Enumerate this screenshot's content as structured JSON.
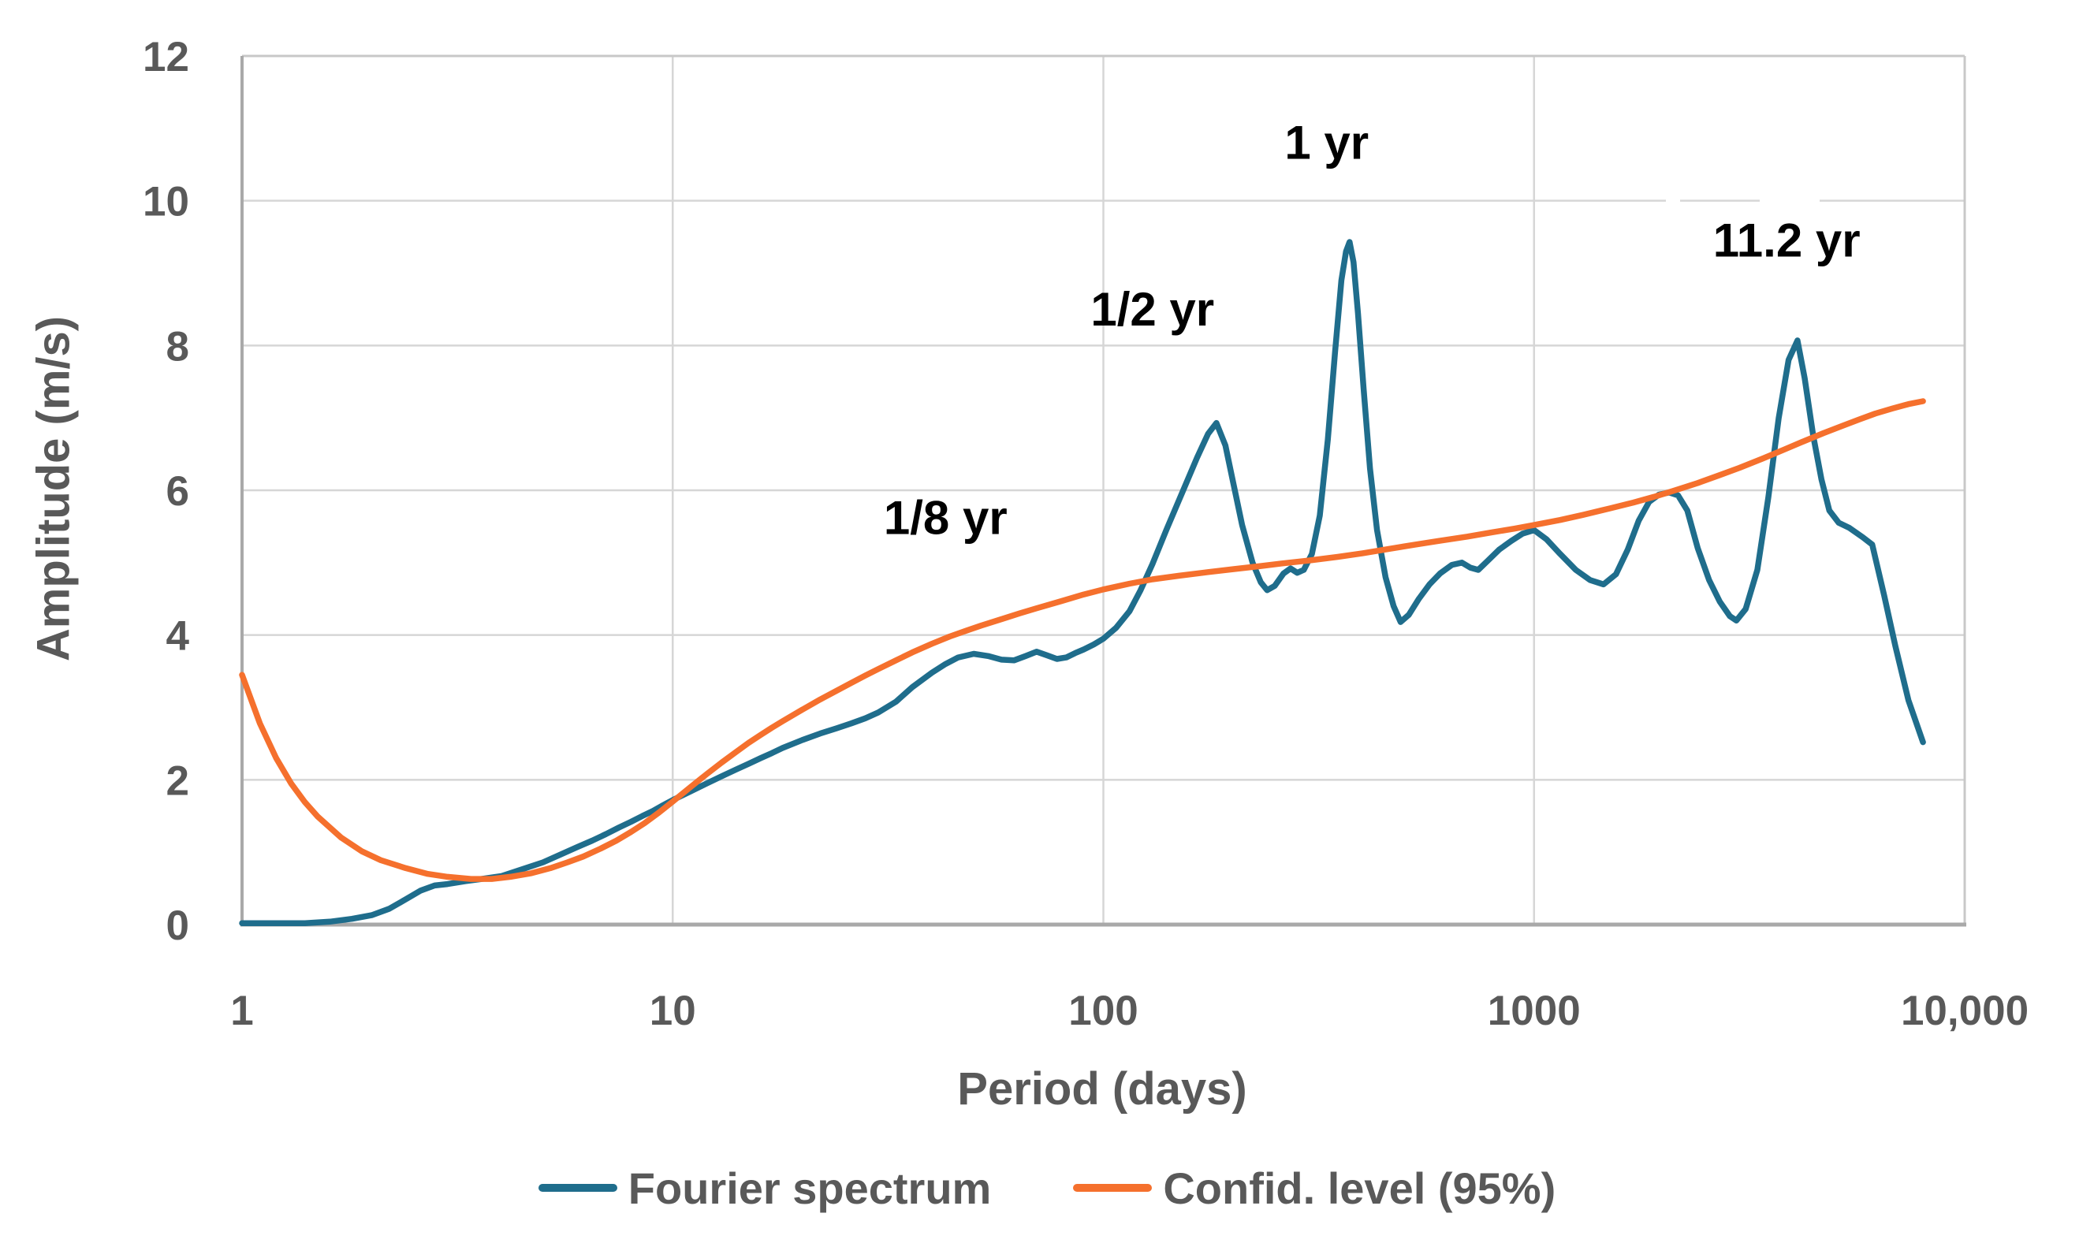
{
  "chart_data": {
    "type": "line",
    "title": "",
    "xlabel": "Period (days)",
    "ylabel": "Amplitude (m/s)",
    "x_scale": "log",
    "xlim": [
      1,
      10000
    ],
    "ylim": [
      0,
      12
    ],
    "grid": true,
    "legend_position": "bottom",
    "x_ticks": [
      {
        "label": "1",
        "value": 1
      },
      {
        "label": "10",
        "value": 10
      },
      {
        "label": "100",
        "value": 100
      },
      {
        "label": "1000",
        "value": 1000
      },
      {
        "label": "10,000",
        "value": 10000
      }
    ],
    "y_ticks": [
      {
        "label": "0",
        "value": 0
      },
      {
        "label": "2",
        "value": 2
      },
      {
        "label": "4",
        "value": 4
      },
      {
        "label": "6",
        "value": 6
      },
      {
        "label": "8",
        "value": 8
      },
      {
        "label": "10",
        "value": 10
      },
      {
        "label": "12",
        "value": 12
      }
    ],
    "annotations": [
      {
        "label": "1/8 yr",
        "period": 43,
        "amplitude": 5.62
      },
      {
        "label": "1/2 yr",
        "period": 130,
        "amplitude": 8.5
      },
      {
        "label": "1 yr",
        "period": 330,
        "amplitude": 10.8
      },
      {
        "label": "11.2 yr",
        "period": 3860,
        "amplitude": 9.45
      }
    ],
    "series": [
      {
        "name": "Fourier spectrum",
        "color": "#1F6D8C",
        "points": [
          [
            1,
            0.02
          ],
          [
            1.2,
            0.02
          ],
          [
            1.4,
            0.02
          ],
          [
            1.6,
            0.04
          ],
          [
            1.8,
            0.08
          ],
          [
            2,
            0.13
          ],
          [
            2.2,
            0.22
          ],
          [
            2.4,
            0.35
          ],
          [
            2.6,
            0.47
          ],
          [
            2.8,
            0.54
          ],
          [
            3,
            0.56
          ],
          [
            3.3,
            0.6
          ],
          [
            3.6,
            0.63
          ],
          [
            4,
            0.67
          ],
          [
            4.5,
            0.77
          ],
          [
            5,
            0.86
          ],
          [
            5.5,
            0.97
          ],
          [
            6,
            1.07
          ],
          [
            6.5,
            1.16
          ],
          [
            7,
            1.25
          ],
          [
            7.5,
            1.34
          ],
          [
            8,
            1.42
          ],
          [
            8.5,
            1.5
          ],
          [
            9,
            1.57
          ],
          [
            9.5,
            1.65
          ],
          [
            10,
            1.72
          ],
          [
            11,
            1.84
          ],
          [
            12,
            1.95
          ],
          [
            13,
            2.05
          ],
          [
            14,
            2.14
          ],
          [
            15,
            2.22
          ],
          [
            16,
            2.3
          ],
          [
            17,
            2.37
          ],
          [
            18,
            2.44
          ],
          [
            20,
            2.55
          ],
          [
            22,
            2.64
          ],
          [
            24,
            2.71
          ],
          [
            26,
            2.78
          ],
          [
            28,
            2.85
          ],
          [
            30,
            2.93
          ],
          [
            33,
            3.08
          ],
          [
            36,
            3.28
          ],
          [
            40,
            3.48
          ],
          [
            43,
            3.6
          ],
          [
            46,
            3.69
          ],
          [
            50,
            3.74
          ],
          [
            54,
            3.71
          ],
          [
            58,
            3.66
          ],
          [
            62,
            3.65
          ],
          [
            66,
            3.71
          ],
          [
            70,
            3.77
          ],
          [
            74,
            3.72
          ],
          [
            78,
            3.67
          ],
          [
            82,
            3.69
          ],
          [
            86,
            3.75
          ],
          [
            90,
            3.8
          ],
          [
            95,
            3.87
          ],
          [
            100,
            3.95
          ],
          [
            107,
            4.1
          ],
          [
            115,
            4.33
          ],
          [
            122,
            4.62
          ],
          [
            130,
            4.98
          ],
          [
            140,
            5.45
          ],
          [
            152,
            5.95
          ],
          [
            165,
            6.45
          ],
          [
            175,
            6.78
          ],
          [
            183,
            6.93
          ],
          [
            192,
            6.62
          ],
          [
            200,
            6.12
          ],
          [
            210,
            5.52
          ],
          [
            222,
            5.0
          ],
          [
            232,
            4.73
          ],
          [
            240,
            4.62
          ],
          [
            250,
            4.68
          ],
          [
            262,
            4.85
          ],
          [
            272,
            4.92
          ],
          [
            282,
            4.86
          ],
          [
            292,
            4.9
          ],
          [
            305,
            5.12
          ],
          [
            318,
            5.65
          ],
          [
            332,
            6.7
          ],
          [
            345,
            7.9
          ],
          [
            357,
            8.9
          ],
          [
            366,
            9.3
          ],
          [
            373,
            9.43
          ],
          [
            381,
            9.15
          ],
          [
            390,
            8.45
          ],
          [
            402,
            7.4
          ],
          [
            416,
            6.3
          ],
          [
            432,
            5.45
          ],
          [
            452,
            4.8
          ],
          [
            472,
            4.4
          ],
          [
            490,
            4.18
          ],
          [
            512,
            4.28
          ],
          [
            540,
            4.5
          ],
          [
            572,
            4.7
          ],
          [
            605,
            4.85
          ],
          [
            645,
            4.97
          ],
          [
            680,
            5.0
          ],
          [
            712,
            4.93
          ],
          [
            742,
            4.9
          ],
          [
            782,
            5.03
          ],
          [
            830,
            5.18
          ],
          [
            885,
            5.3
          ],
          [
            940,
            5.4
          ],
          [
            1000,
            5.45
          ],
          [
            1070,
            5.32
          ],
          [
            1150,
            5.12
          ],
          [
            1250,
            4.9
          ],
          [
            1350,
            4.76
          ],
          [
            1450,
            4.7
          ],
          [
            1550,
            4.84
          ],
          [
            1650,
            5.18
          ],
          [
            1750,
            5.58
          ],
          [
            1850,
            5.84
          ],
          [
            1950,
            5.94
          ],
          [
            2060,
            5.97
          ],
          [
            2160,
            5.93
          ],
          [
            2270,
            5.72
          ],
          [
            2400,
            5.2
          ],
          [
            2550,
            4.76
          ],
          [
            2700,
            4.46
          ],
          [
            2850,
            4.26
          ],
          [
            2950,
            4.2
          ],
          [
            3100,
            4.36
          ],
          [
            3300,
            4.9
          ],
          [
            3500,
            5.9
          ],
          [
            3700,
            7.0
          ],
          [
            3900,
            7.8
          ],
          [
            4090,
            8.07
          ],
          [
            4250,
            7.55
          ],
          [
            4450,
            6.75
          ],
          [
            4650,
            6.15
          ],
          [
            4850,
            5.72
          ],
          [
            5100,
            5.55
          ],
          [
            5400,
            5.48
          ],
          [
            5800,
            5.35
          ],
          [
            6100,
            5.25
          ],
          [
            6500,
            4.55
          ],
          [
            6900,
            3.85
          ],
          [
            7400,
            3.1
          ],
          [
            8000,
            2.52
          ]
        ]
      },
      {
        "name": "Confid. level (95%)",
        "color": "#F5702D",
        "points": [
          [
            1,
            3.45
          ],
          [
            1.1,
            2.78
          ],
          [
            1.2,
            2.3
          ],
          [
            1.3,
            1.95
          ],
          [
            1.4,
            1.69
          ],
          [
            1.5,
            1.49
          ],
          [
            1.7,
            1.2
          ],
          [
            1.9,
            1.01
          ],
          [
            2.1,
            0.89
          ],
          [
            2.4,
            0.78
          ],
          [
            2.7,
            0.7
          ],
          [
            3,
            0.66
          ],
          [
            3.4,
            0.63
          ],
          [
            3.8,
            0.63
          ],
          [
            4.2,
            0.66
          ],
          [
            4.7,
            0.71
          ],
          [
            5.2,
            0.78
          ],
          [
            5.7,
            0.86
          ],
          [
            6.2,
            0.94
          ],
          [
            6.8,
            1.05
          ],
          [
            7.4,
            1.16
          ],
          [
            8,
            1.28
          ],
          [
            8.6,
            1.4
          ],
          [
            9.3,
            1.55
          ],
          [
            10,
            1.7
          ],
          [
            11,
            1.9
          ],
          [
            12,
            2.08
          ],
          [
            13,
            2.24
          ],
          [
            14,
            2.38
          ],
          [
            15,
            2.51
          ],
          [
            16,
            2.62
          ],
          [
            17,
            2.72
          ],
          [
            18,
            2.81
          ],
          [
            20,
            2.97
          ],
          [
            22,
            3.11
          ],
          [
            24,
            3.23
          ],
          [
            26,
            3.34
          ],
          [
            28,
            3.44
          ],
          [
            30,
            3.53
          ],
          [
            33,
            3.65
          ],
          [
            36,
            3.76
          ],
          [
            40,
            3.88
          ],
          [
            44,
            3.98
          ],
          [
            48,
            4.06
          ],
          [
            52,
            4.13
          ],
          [
            58,
            4.22
          ],
          [
            64,
            4.3
          ],
          [
            70,
            4.37
          ],
          [
            80,
            4.47
          ],
          [
            90,
            4.56
          ],
          [
            100,
            4.63
          ],
          [
            115,
            4.71
          ],
          [
            130,
            4.77
          ],
          [
            150,
            4.82
          ],
          [
            175,
            4.87
          ],
          [
            200,
            4.91
          ],
          [
            230,
            4.95
          ],
          [
            260,
            4.99
          ],
          [
            300,
            5.03
          ],
          [
            350,
            5.08
          ],
          [
            400,
            5.13
          ],
          [
            460,
            5.19
          ],
          [
            530,
            5.25
          ],
          [
            600,
            5.3
          ],
          [
            700,
            5.36
          ],
          [
            800,
            5.42
          ],
          [
            900,
            5.47
          ],
          [
            1000,
            5.52
          ],
          [
            1150,
            5.59
          ],
          [
            1300,
            5.66
          ],
          [
            1500,
            5.75
          ],
          [
            1700,
            5.83
          ],
          [
            1900,
            5.91
          ],
          [
            2100,
            5.99
          ],
          [
            2400,
            6.1
          ],
          [
            2700,
            6.21
          ],
          [
            3000,
            6.31
          ],
          [
            3400,
            6.44
          ],
          [
            3800,
            6.56
          ],
          [
            4200,
            6.67
          ],
          [
            4700,
            6.79
          ],
          [
            5200,
            6.89
          ],
          [
            5700,
            6.98
          ],
          [
            6200,
            7.06
          ],
          [
            6800,
            7.13
          ],
          [
            7400,
            7.19
          ],
          [
            8000,
            7.23
          ]
        ]
      }
    ],
    "style": {
      "text_color": "#595959",
      "annotation_color": "#000000",
      "gridline_color": "#D6D6D6",
      "axis_color": "#A9A9A9",
      "outer_border_color": "#C8C8C8",
      "background": "#FFFFFF"
    }
  }
}
